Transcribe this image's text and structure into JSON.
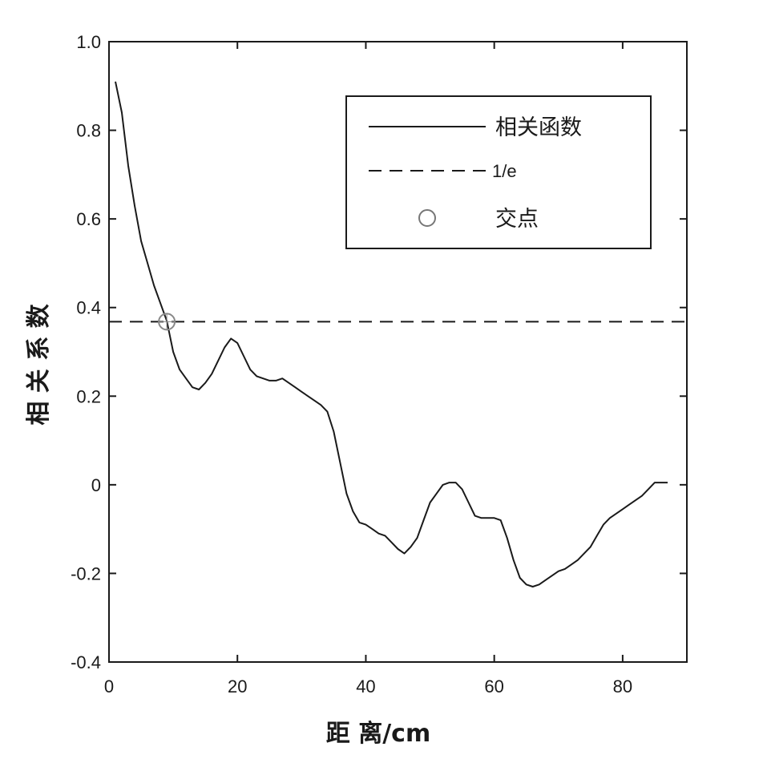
{
  "chart_data": {
    "type": "line",
    "xlabel": "距 离/cm",
    "ylabel": "相 关 系 数",
    "xlim": [
      0,
      90
    ],
    "ylim": [
      -0.4,
      1.0
    ],
    "x_ticks": [
      0,
      20,
      40,
      60,
      80
    ],
    "x_tick_labels": [
      "0",
      "20",
      "40",
      "60",
      "80"
    ],
    "y_ticks": [
      -0.4,
      -0.2,
      0,
      0.2,
      0.4,
      0.6,
      0.8,
      1.0
    ],
    "y_tick_labels": [
      "-0.4",
      "-0.2",
      "0",
      "0.2",
      "0.4",
      "0.6",
      "0.8",
      "1.0"
    ],
    "grid": false,
    "legend_position": "top-right",
    "series": [
      {
        "name": "相关函数",
        "style": "solid",
        "color": "#1a1a1a",
        "x": [
          1,
          2,
          3,
          4,
          5,
          6,
          7,
          8,
          9,
          10,
          11,
          12,
          13,
          14,
          15,
          16,
          17,
          18,
          19,
          20,
          21,
          22,
          23,
          24,
          25,
          26,
          27,
          28,
          29,
          30,
          31,
          32,
          33,
          34,
          35,
          36,
          37,
          38,
          39,
          40,
          41,
          42,
          43,
          44,
          45,
          46,
          47,
          48,
          49,
          50,
          51,
          52,
          53,
          54,
          55,
          56,
          57,
          58,
          59,
          60,
          61,
          62,
          63,
          64,
          65,
          66,
          67,
          68,
          69,
          70,
          71,
          72,
          73,
          74,
          75,
          76,
          77,
          78,
          79,
          80,
          81,
          82,
          83,
          84,
          85,
          86,
          87
        ],
        "y": [
          0.91,
          0.84,
          0.72,
          0.63,
          0.55,
          0.5,
          0.45,
          0.41,
          0.37,
          0.3,
          0.26,
          0.24,
          0.22,
          0.215,
          0.23,
          0.25,
          0.28,
          0.31,
          0.33,
          0.32,
          0.29,
          0.26,
          0.245,
          0.24,
          0.235,
          0.235,
          0.24,
          0.23,
          0.22,
          0.21,
          0.2,
          0.19,
          0.18,
          0.165,
          0.12,
          0.05,
          -0.02,
          -0.06,
          -0.085,
          -0.09,
          -0.1,
          -0.11,
          -0.115,
          -0.13,
          -0.145,
          -0.155,
          -0.14,
          -0.12,
          -0.08,
          -0.04,
          -0.02,
          0,
          0.005,
          0.005,
          -0.01,
          -0.04,
          -0.07,
          -0.075,
          -0.075,
          -0.075,
          -0.08,
          -0.12,
          -0.17,
          -0.21,
          -0.225,
          -0.23,
          -0.225,
          -0.215,
          -0.205,
          -0.195,
          -0.19,
          -0.18,
          -0.17,
          -0.155,
          -0.14,
          -0.115,
          -0.09,
          -0.075,
          -0.065,
          -0.055,
          -0.045,
          -0.035,
          -0.025,
          -0.01,
          0.005,
          0.005,
          0.005
        ]
      },
      {
        "name": "1/e",
        "style": "dashed",
        "color": "#1a1a1a",
        "x": [
          0,
          90
        ],
        "y": [
          0.368,
          0.368
        ]
      },
      {
        "name": "交点",
        "style": "marker-circle",
        "color": "#888888",
        "x": [
          9
        ],
        "y": [
          0.368
        ]
      }
    ]
  }
}
